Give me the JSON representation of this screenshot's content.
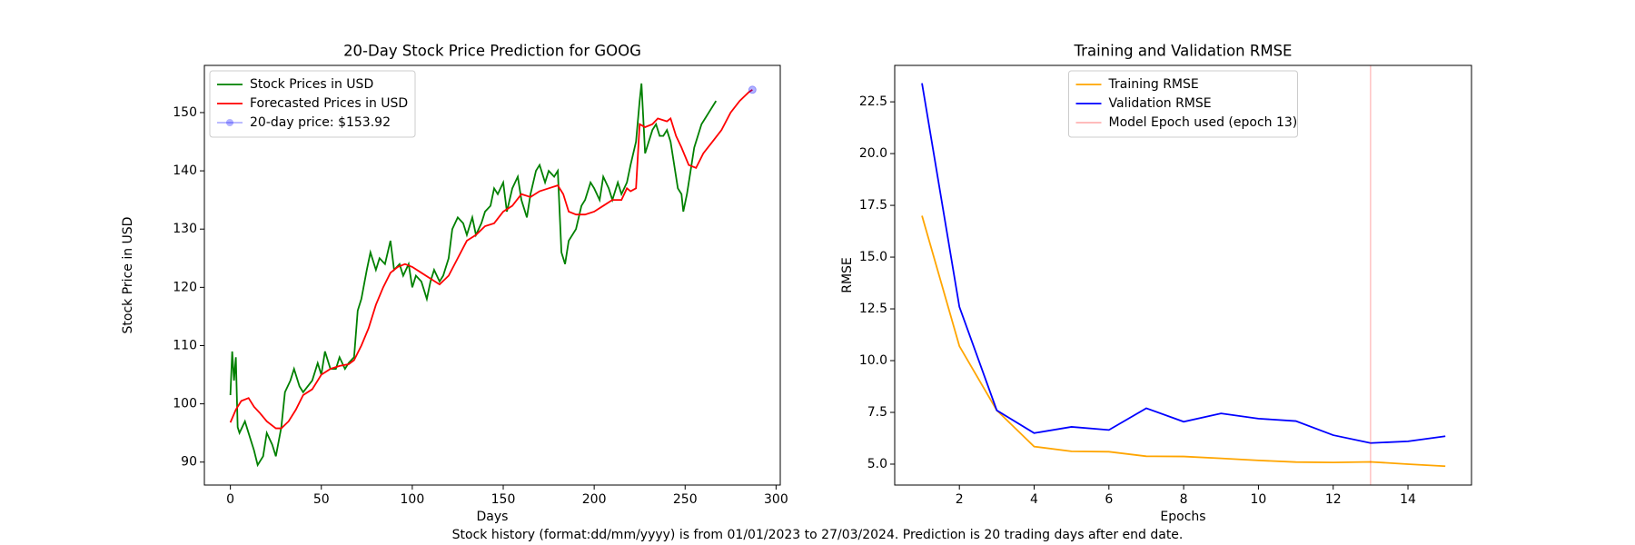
{
  "chart_data": [
    {
      "type": "line",
      "title": "20-Day Stock Price Prediction for GOOG",
      "xlabel": "Days",
      "ylabel": "Stock Price in USD",
      "xlim": [
        -14.3,
        302.3
      ],
      "ylim": [
        86.06,
        158.1
      ],
      "xticks": [
        0,
        50,
        100,
        150,
        200,
        250,
        300
      ],
      "yticks": [
        90,
        100,
        110,
        120,
        130,
        140,
        150
      ],
      "legend": "upper left",
      "series": [
        {
          "name": "Stock Prices in USD",
          "color": "green",
          "x": [
            0,
            1,
            2,
            3,
            4,
            5,
            8,
            10,
            13,
            15,
            18,
            20,
            23,
            25,
            28,
            30,
            33,
            35,
            38,
            40,
            45,
            48,
            50,
            52,
            55,
            58,
            60,
            63,
            65,
            68,
            70,
            72,
            75,
            77,
            80,
            82,
            85,
            88,
            90,
            93,
            95,
            98,
            100,
            102,
            105,
            108,
            110,
            112,
            115,
            117,
            120,
            122,
            125,
            128,
            130,
            133,
            135,
            138,
            140,
            143,
            145,
            147,
            150,
            152,
            155,
            158,
            160,
            163,
            165,
            168,
            170,
            173,
            175,
            178,
            180,
            182,
            184,
            186,
            190,
            193,
            195,
            198,
            200,
            203,
            205,
            208,
            210,
            213,
            215,
            218,
            220,
            223,
            225,
            226,
            228,
            230,
            232,
            234,
            236,
            238,
            240,
            242,
            244,
            246,
            248,
            249,
            251,
            253,
            255,
            257,
            259,
            261,
            263,
            265,
            267
          ],
          "values": [
            101.5,
            109,
            104,
            108,
            96,
            95,
            97,
            95,
            92,
            89.5,
            91,
            95,
            93,
            91,
            96,
            102,
            104,
            106,
            103,
            102,
            104,
            107,
            105,
            109,
            106,
            106,
            108,
            106,
            107,
            108,
            116,
            118,
            123,
            126,
            123,
            125,
            124,
            128,
            123,
            124,
            122,
            124,
            120,
            122,
            121,
            118,
            121,
            123,
            121,
            122,
            125,
            130,
            132,
            131,
            129,
            132,
            129,
            131,
            133,
            134,
            137,
            136,
            138,
            133,
            137,
            139,
            135,
            132,
            136,
            140,
            141,
            138,
            140,
            139,
            140,
            126,
            124,
            128,
            130,
            134,
            135,
            138,
            137,
            135,
            139,
            137,
            135,
            138,
            136,
            138,
            141,
            145,
            152,
            155,
            143,
            145,
            147,
            148,
            146,
            146,
            147,
            145,
            141,
            137,
            136,
            133,
            136,
            140,
            144,
            146,
            148,
            149,
            150,
            151,
            152
          ]
        },
        {
          "name": "Forecasted Prices in USD",
          "color": "red",
          "x": [
            0,
            3,
            6,
            10,
            13,
            16,
            20,
            25,
            28,
            32,
            36,
            40,
            45,
            50,
            55,
            60,
            65,
            68,
            72,
            76,
            80,
            84,
            88,
            92,
            96,
            100,
            105,
            110,
            115,
            120,
            125,
            130,
            135,
            140,
            145,
            150,
            155,
            160,
            165,
            170,
            175,
            180,
            183,
            186,
            190,
            195,
            200,
            205,
            210,
            215,
            218,
            220,
            223,
            225,
            228,
            232,
            235,
            240,
            242,
            245,
            248,
            252,
            256,
            260,
            265,
            270,
            275,
            280,
            285,
            287
          ],
          "values": [
            96.8,
            99,
            100.5,
            101,
            99.5,
            98.5,
            97,
            95.8,
            95.8,
            97,
            99,
            101.5,
            102.5,
            105,
            106,
            106.5,
            106.8,
            107.5,
            110,
            113,
            117,
            120,
            122.5,
            123.5,
            124,
            123.5,
            122.5,
            121.5,
            120.5,
            122,
            125,
            128,
            129,
            130.5,
            131,
            133,
            134,
            136,
            135.5,
            136.5,
            137,
            137.5,
            136,
            133,
            132.5,
            132.5,
            133,
            134,
            135,
            135,
            137,
            136.5,
            137,
            148,
            147.5,
            148,
            149,
            148.5,
            149,
            146,
            144,
            141,
            140.5,
            143,
            145,
            147,
            150,
            152,
            153.5,
            153.92
          ]
        },
        {
          "name": "20-day price: $153.92",
          "color": "blue",
          "marker": "o",
          "alpha": 0.3,
          "x": [
            287
          ],
          "values": [
            153.92
          ]
        }
      ]
    },
    {
      "type": "line",
      "title": "Training and Validation RMSE",
      "xlabel": "Epochs",
      "ylabel": "RMSE",
      "xlim": [
        0.27,
        15.7
      ],
      "ylim": [
        3.99,
        24.26
      ],
      "xticks": [
        2,
        4,
        6,
        8,
        10,
        12,
        14
      ],
      "yticks": [
        {
          "value": 5,
          "label": "5.0"
        },
        7.5,
        {
          "value": 10,
          "label": "10.0"
        },
        12.5,
        {
          "value": 15,
          "label": "15.0"
        },
        17.5,
        {
          "value": 20,
          "label": "20.0"
        },
        22.5
      ],
      "legend": "upper center",
      "x": [
        1,
        2,
        3,
        4,
        5,
        6,
        7,
        8,
        9,
        10,
        11,
        12,
        13,
        14,
        15
      ],
      "series": [
        {
          "name": "Training RMSE",
          "color": "orange",
          "values": [
            17.0,
            10.7,
            7.6,
            5.85,
            5.62,
            5.6,
            5.38,
            5.37,
            5.28,
            5.18,
            5.1,
            5.08,
            5.11,
            5.0,
            4.9
          ]
        },
        {
          "name": "Validation RMSE",
          "color": "blue",
          "values": [
            23.4,
            12.6,
            7.6,
            6.5,
            6.8,
            6.65,
            7.7,
            7.05,
            7.45,
            7.2,
            7.08,
            6.4,
            6.02,
            6.1,
            6.35
          ]
        }
      ],
      "vlines": [
        {
          "name": "Model Epoch used (epoch 13)",
          "x": 13,
          "color": "red",
          "alpha": 0.3
        }
      ]
    }
  ],
  "caption": "Stock history (format:dd/mm/yyyy) is from 01/01/2023 to 27/03/2024. Prediction is 20 trading days after end date."
}
